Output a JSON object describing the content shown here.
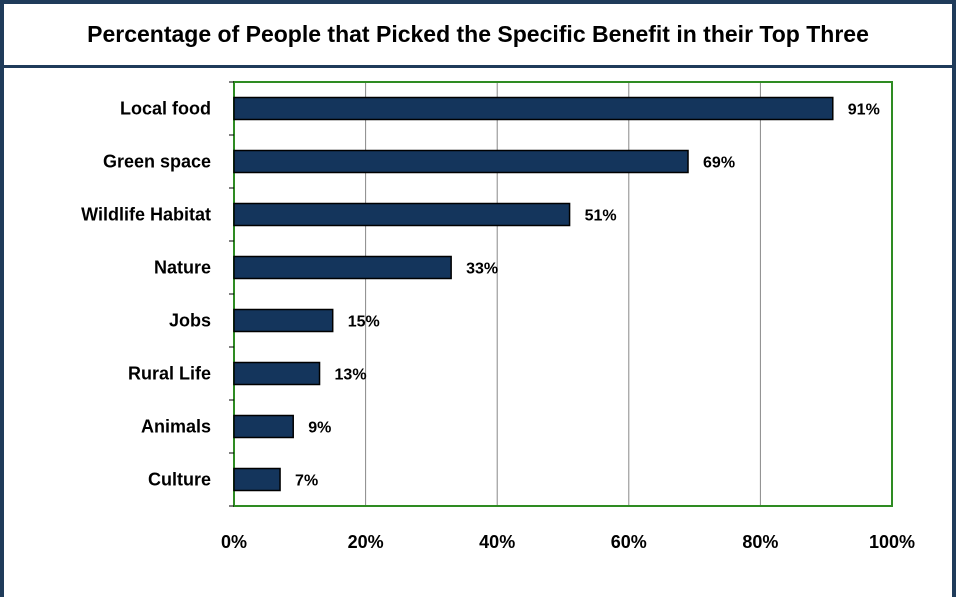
{
  "chart_data": {
    "type": "bar",
    "orientation": "horizontal",
    "title": "Percentage of People that Picked the Specific Benefit in their Top Three",
    "categories": [
      "Local food",
      "Green space",
      "Wildlife Habitat",
      "Nature",
      "Jobs",
      "Rural Life",
      "Animals",
      "Culture"
    ],
    "values": [
      91,
      69,
      51,
      33,
      15,
      13,
      9,
      7
    ],
    "value_labels": [
      "91%",
      "69%",
      "51%",
      "33%",
      "15%",
      "13%",
      "9%",
      "7%"
    ],
    "xlim": [
      0,
      100
    ],
    "xticks": [
      "0%",
      "20%",
      "40%",
      "60%",
      "80%",
      "100%"
    ],
    "grid": true,
    "colors": {
      "bar": "#14355c",
      "bar_edge": "#000000",
      "plot_border": "#2e8b22",
      "gridline": "#888888",
      "frame": "#1f3b5a"
    }
  }
}
